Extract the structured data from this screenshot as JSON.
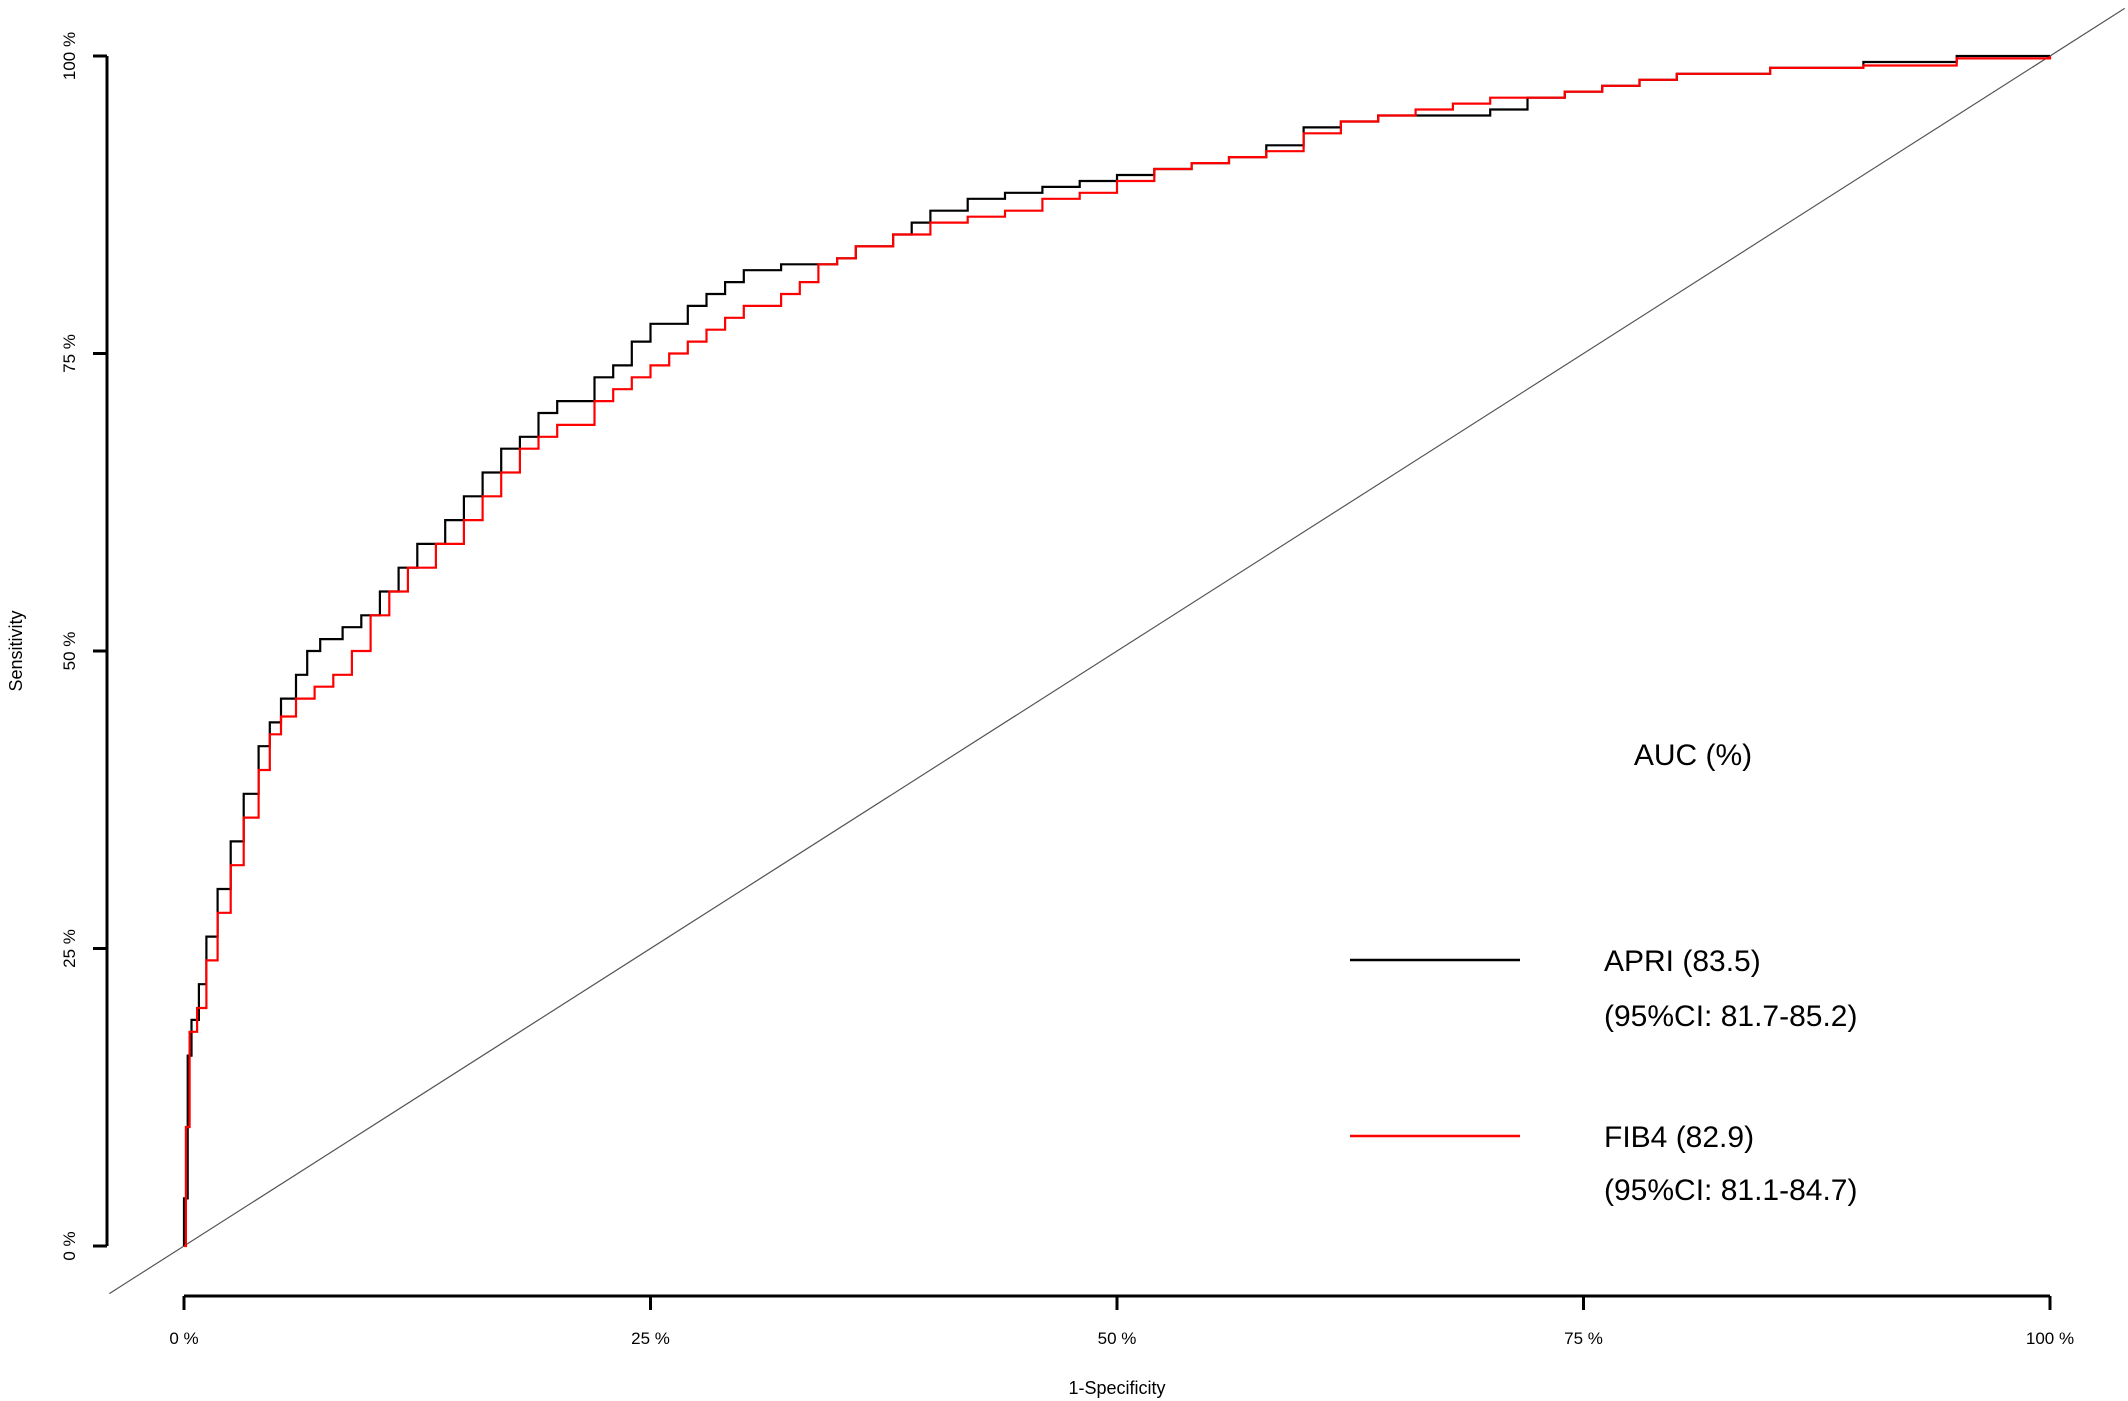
{
  "chart_data": {
    "type": "line",
    "xlabel": "1-Specificity",
    "ylabel": "Sensitivity",
    "xlim": [
      0,
      100
    ],
    "ylim": [
      0,
      100
    ],
    "x_ticks": [
      0,
      25,
      50,
      75,
      100
    ],
    "y_ticks": [
      0,
      25,
      50,
      75,
      100
    ],
    "x_tick_labels": [
      "0 %",
      "25 %",
      "50 %",
      "75 %",
      "100 %"
    ],
    "y_tick_labels": [
      "0 %",
      "25 %",
      "50 %",
      "75 %",
      "100 %"
    ],
    "grid": false,
    "legend_title": "AUC (%)",
    "legend_position": "bottom-right",
    "reference_line": {
      "from": [
        -4,
        -4
      ],
      "to": [
        104,
        104
      ],
      "color": "#555555"
    },
    "series": [
      {
        "name": "APRI (83.5)",
        "ci": "(95%CI: 81.7-85.2)",
        "color": "#000000",
        "x": [
          0,
          0,
          0.2,
          0.4,
          0.8,
          1.2,
          1.8,
          2.5,
          3.2,
          4.0,
          4.6,
          5.2,
          6.0,
          6.6,
          7.3,
          8.5,
          9.5,
          10.5,
          11.5,
          12.5,
          14,
          15,
          16,
          17,
          18,
          19,
          20,
          22,
          23,
          24,
          25,
          27,
          28,
          29,
          30,
          32,
          33,
          34,
          35,
          36,
          38,
          39,
          40,
          42,
          44,
          46,
          48,
          50,
          52,
          54,
          56,
          58,
          60,
          62,
          64,
          66,
          68,
          70,
          72,
          74,
          76,
          78,
          80,
          85,
          90,
          95,
          100
        ],
        "y": [
          0,
          4,
          16,
          19,
          22,
          26,
          30,
          34,
          38,
          42,
          44,
          46,
          48,
          50,
          51,
          52,
          53,
          55,
          57,
          59,
          61,
          63,
          65,
          67,
          68,
          70,
          71,
          73,
          74,
          76,
          77.5,
          79,
          80,
          81,
          82,
          82.5,
          82.5,
          82.5,
          83,
          84,
          85,
          86,
          87,
          88,
          88.5,
          89,
          89.5,
          90,
          90.5,
          91,
          91.5,
          92.5,
          94,
          94.5,
          95,
          95,
          95,
          95.5,
          96.5,
          97,
          97.5,
          98,
          98.5,
          99,
          99.5,
          100,
          100
        ]
      },
      {
        "name": "FIB4 (82.9)",
        "ci": "(95%CI: 81.1-84.7)",
        "color": "#ff0000",
        "x": [
          0,
          0.1,
          0.3,
          0.7,
          1.2,
          1.8,
          2.5,
          3.2,
          4.0,
          4.6,
          5.2,
          6.0,
          7.0,
          8.0,
          9.0,
          10.0,
          11.0,
          12.0,
          13.5,
          15,
          16,
          17,
          18,
          19,
          20,
          22,
          23,
          24,
          25,
          26,
          27,
          28,
          29,
          30,
          32,
          33,
          34,
          35,
          36,
          38,
          40,
          42,
          44,
          46,
          48,
          50,
          52,
          54,
          56,
          58,
          60,
          62,
          64,
          66,
          68,
          70,
          72,
          74,
          76,
          78,
          80,
          85,
          90,
          95,
          100
        ],
        "y": [
          0,
          10,
          18,
          20,
          24,
          28,
          32,
          36,
          40,
          43,
          44.5,
          46,
          47,
          48,
          50,
          53,
          55,
          57,
          59,
          61,
          63,
          65,
          67,
          68,
          69,
          71,
          72,
          73,
          74,
          75,
          76,
          77,
          78,
          79,
          80,
          81,
          82.5,
          83,
          84,
          85,
          86,
          86.5,
          87,
          88,
          88.5,
          89.5,
          90.5,
          91,
          91.5,
          92,
          93.5,
          94.5,
          95,
          95.5,
          96,
          96.5,
          96.5,
          97,
          97.5,
          98,
          98.5,
          99,
          99.2,
          99.8,
          100
        ]
      }
    ]
  }
}
